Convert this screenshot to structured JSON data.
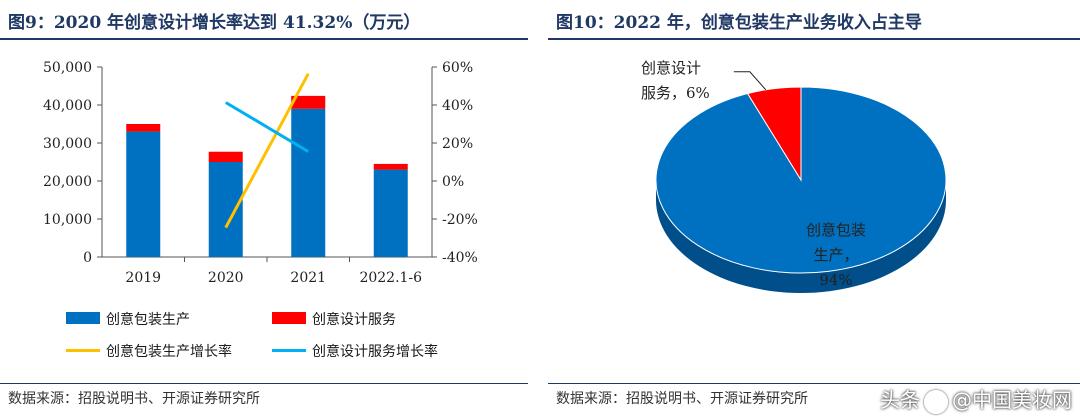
{
  "left_panel": {
    "title": "图9：2020 年创意设计增长率达到 41.32%（万元）",
    "source": "数据来源：招股说明书、开源证券研究所"
  },
  "right_panel": {
    "title": "图10：2022 年，创意包装生产业务收入占主导",
    "source": "数据来源：招股说明书、开源证券研究所"
  },
  "watermark": {
    "text_before": "头条",
    "text_after": "@中国美妆网"
  },
  "colors": {
    "blue": "#0070c0",
    "red": "#ff0000",
    "yellow": "#ffc000",
    "cyan": "#00b0f0",
    "title": "#1f3864"
  },
  "chart_data": [
    {
      "type": "bar",
      "title": "图9：2020 年创意设计增长率达到 41.32%（万元）",
      "categories": [
        "2019",
        "2020",
        "2021",
        "2022.1-6"
      ],
      "stacked": true,
      "series": [
        {
          "name": "创意包装生产",
          "axis": "left",
          "values": [
            33000,
            25000,
            39000,
            23000
          ]
        },
        {
          "name": "创意设计服务",
          "axis": "left",
          "values": [
            2000,
            2700,
            3400,
            1500
          ]
        },
        {
          "name": "创意包装生产增长率",
          "type": "line",
          "axis": "right",
          "x": [
            "2020",
            "2021"
          ],
          "values": [
            -24.5,
            56.5
          ]
        },
        {
          "name": "创意设计服务增长率",
          "type": "line",
          "axis": "right",
          "x": [
            "2020",
            "2021"
          ],
          "values": [
            41.32,
            15.5
          ]
        }
      ],
      "y_left": {
        "min": 0,
        "max": 50000,
        "ticks": [
          "0",
          "10,000",
          "20,000",
          "30,000",
          "40,000",
          "50,000"
        ]
      },
      "y_right": {
        "min": -40,
        "max": 60,
        "ticks": [
          "-40%",
          "-20%",
          "0%",
          "20%",
          "40%",
          "60%"
        ]
      },
      "legend_position": "bottom"
    },
    {
      "type": "pie",
      "title": "图10：2022 年，创意包装生产业务收入占主导",
      "slices": [
        {
          "name": "创意包装生产",
          "label_lines": [
            "创意包装",
            "生产，",
            "94%"
          ],
          "value": 94
        },
        {
          "name": "创意设计服务",
          "label_lines": [
            "创意设计",
            "服务，6%"
          ],
          "value": 6
        }
      ]
    }
  ]
}
